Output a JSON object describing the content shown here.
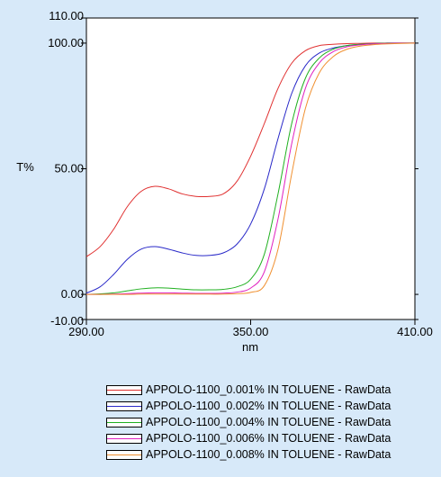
{
  "chart_data": {
    "type": "line",
    "xlabel": "nm",
    "ylabel": "T%",
    "xlim": [
      290,
      410
    ],
    "ylim": [
      -10,
      110
    ],
    "xticks": [
      "290.00",
      "350.00",
      "410.00"
    ],
    "yticks": [
      {
        "value": 110,
        "label": "110.00"
      },
      {
        "value": 100,
        "label": "100.00"
      },
      {
        "value": 50,
        "label": "50.00"
      },
      {
        "value": 0,
        "label": "0.00"
      },
      {
        "value": -10,
        "label": "-10.00"
      }
    ],
    "grid": false,
    "legend_position": "bottom-right",
    "series": [
      {
        "name": "APPOLO-1100_0.001% IN TOLUENE - RawData",
        "color": "#e03030",
        "x": [
          290,
          295,
          300,
          305,
          310,
          315,
          320,
          325,
          330,
          335,
          340,
          345,
          350,
          355,
          360,
          365,
          370,
          375,
          380,
          385,
          390,
          395,
          400,
          405,
          410
        ],
        "y": [
          15,
          19,
          26,
          35,
          41,
          43,
          42,
          40,
          39,
          39,
          40,
          45,
          55,
          68,
          82,
          92,
          97,
          99,
          99.5,
          99.8,
          99.9,
          100,
          100,
          100,
          100
        ]
      },
      {
        "name": "APPOLO-1100_0.002% IN TOLUENE - RawData",
        "color": "#2828c8",
        "x": [
          290,
          295,
          300,
          305,
          310,
          315,
          320,
          325,
          330,
          335,
          340,
          345,
          350,
          355,
          360,
          365,
          370,
          375,
          380,
          385,
          390,
          395,
          400,
          405,
          410
        ],
        "y": [
          0.5,
          3,
          8,
          14,
          18,
          19,
          18,
          16.5,
          15.5,
          15.5,
          16.5,
          20,
          28,
          42,
          62,
          80,
          91,
          96,
          98,
          99,
          99.5,
          99.8,
          100,
          100,
          100
        ]
      },
      {
        "name": "APPOLO-1100_0.004% IN TOLUENE - RawData",
        "color": "#20b020",
        "x": [
          290,
          295,
          300,
          305,
          310,
          315,
          320,
          325,
          330,
          335,
          340,
          345,
          350,
          355,
          360,
          365,
          370,
          375,
          380,
          385,
          390,
          395,
          400,
          405,
          410
        ],
        "y": [
          0,
          0.2,
          0.6,
          1.4,
          2.2,
          2.6,
          2.5,
          2.1,
          1.8,
          1.8,
          2,
          3,
          6,
          16,
          40,
          68,
          86,
          94,
          97.5,
          99,
          99.5,
          99.8,
          100,
          100,
          100
        ]
      },
      {
        "name": "APPOLO-1100_0.006% IN TOLUENE - RawData",
        "color": "#e020c0",
        "x": [
          290,
          295,
          300,
          305,
          310,
          315,
          320,
          325,
          330,
          335,
          340,
          345,
          350,
          355,
          360,
          365,
          370,
          375,
          380,
          385,
          390,
          395,
          400,
          405,
          410
        ],
        "y": [
          0,
          0,
          0.1,
          0.3,
          0.5,
          0.6,
          0.6,
          0.5,
          0.4,
          0.4,
          0.5,
          0.9,
          2.5,
          9,
          30,
          60,
          82,
          92,
          96.5,
          98.5,
          99.3,
          99.7,
          99.9,
          100,
          100
        ]
      },
      {
        "name": "APPOLO-1100_0.008% IN TOLUENE - RawData",
        "color": "#f09030",
        "x": [
          290,
          295,
          300,
          305,
          310,
          315,
          320,
          325,
          330,
          335,
          340,
          345,
          350,
          355,
          360,
          365,
          370,
          375,
          380,
          385,
          390,
          395,
          400,
          405,
          410
        ],
        "y": [
          0,
          0,
          0,
          0,
          0.1,
          0.1,
          0.1,
          0.1,
          0.1,
          0.1,
          0.1,
          0.3,
          0.8,
          3.5,
          18,
          48,
          74,
          88,
          94.5,
          97.5,
          98.8,
          99.4,
          99.7,
          99.9,
          100
        ]
      }
    ]
  }
}
